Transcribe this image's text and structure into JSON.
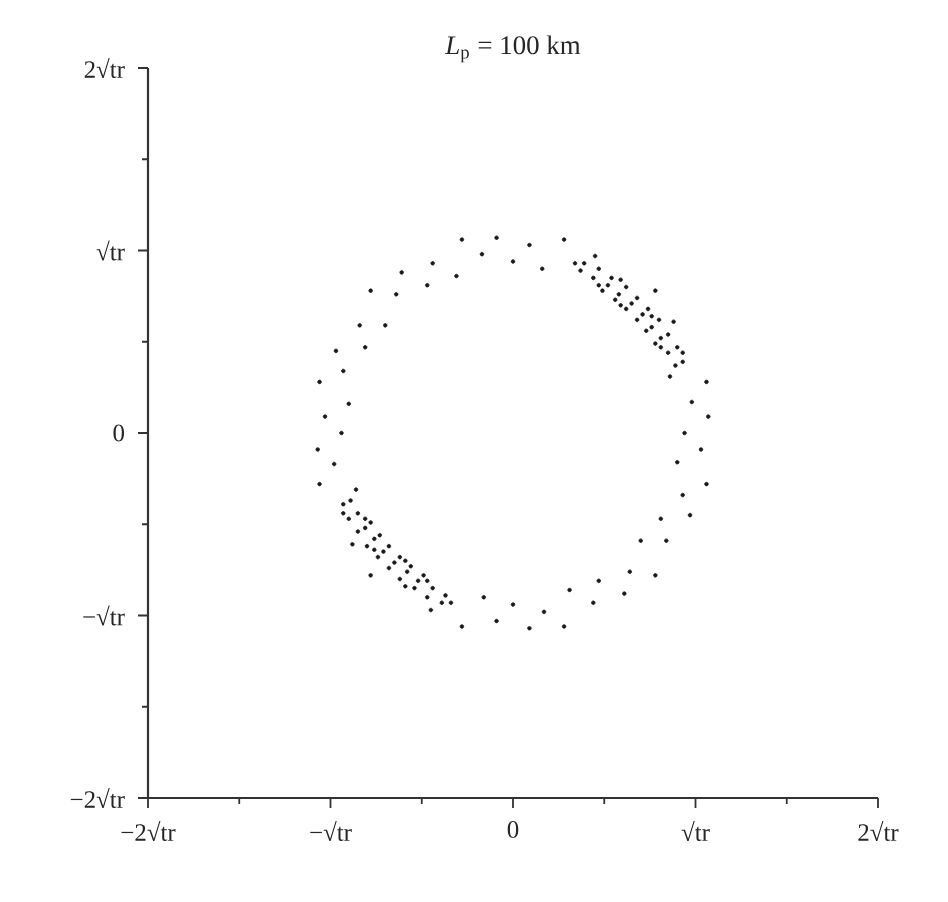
{
  "chart_data": {
    "type": "scatter",
    "title": "*L*$_{p}$ = 100 km",
    "x": [
      0.94,
      1.07,
      0.98,
      1.06,
      0.86,
      0.93,
      0.81,
      0.88,
      0.76,
      0.78,
      0.59,
      0.59,
      0.47,
      0.45,
      0.34,
      0.28,
      0.16,
      0.09,
      0.0,
      -0.09,
      -0.17,
      -0.28,
      -0.31,
      -0.44,
      -0.47,
      -0.61,
      -0.64,
      -0.78,
      -0.7,
      -0.84,
      -0.81,
      -0.97,
      -0.93,
      -1.06,
      -0.9,
      -1.03,
      -0.94,
      -1.07,
      -0.98,
      -1.06,
      -0.86,
      -0.93,
      -0.81,
      -0.88,
      -0.76,
      -0.78,
      -0.59,
      -0.59,
      -0.47,
      -0.45,
      -0.34,
      -0.28,
      -0.16,
      -0.09,
      0.0,
      0.09,
      0.17,
      0.28,
      0.31,
      0.44,
      0.47,
      0.61,
      0.64,
      0.78,
      0.7,
      0.84,
      0.81,
      0.97,
      0.93,
      1.06,
      0.9,
      1.03,
      0.89,
      0.93,
      0.85,
      0.9,
      0.81,
      0.85,
      0.76,
      0.8,
      0.71,
      0.74,
      0.65,
      0.68,
      0.58,
      0.62,
      0.52,
      0.54,
      0.44,
      0.47,
      0.37,
      0.39,
      0.78,
      0.73,
      0.68,
      0.62,
      0.56,
      0.49,
      -0.89,
      -0.93,
      -0.85,
      -0.9,
      -0.81,
      -0.85,
      -0.76,
      -0.8,
      -0.71,
      -0.74,
      -0.65,
      -0.68,
      -0.58,
      -0.62,
      -0.52,
      -0.54,
      -0.44,
      -0.47,
      -0.37,
      -0.39,
      -0.78,
      -0.73,
      -0.68,
      -0.62,
      -0.56,
      -0.49
    ],
    "values": [
      0.0,
      0.09,
      0.17,
      0.28,
      0.31,
      0.44,
      0.47,
      0.61,
      0.64,
      0.78,
      0.7,
      0.84,
      0.81,
      0.97,
      0.93,
      1.06,
      0.9,
      1.03,
      0.94,
      1.07,
      0.98,
      1.06,
      0.86,
      0.93,
      0.81,
      0.88,
      0.76,
      0.78,
      0.59,
      0.59,
      0.47,
      0.45,
      0.34,
      0.28,
      0.16,
      0.09,
      0.0,
      -0.09,
      -0.17,
      -0.28,
      -0.31,
      -0.44,
      -0.47,
      -0.61,
      -0.64,
      -0.78,
      -0.7,
      -0.84,
      -0.81,
      -0.97,
      -0.93,
      -1.06,
      -0.9,
      -1.03,
      -0.94,
      -1.07,
      -0.98,
      -1.06,
      -0.86,
      -0.93,
      -0.81,
      -0.88,
      -0.76,
      -0.78,
      -0.59,
      -0.59,
      -0.47,
      -0.45,
      -0.34,
      -0.28,
      -0.16,
      -0.09,
      0.37,
      0.39,
      0.44,
      0.47,
      0.52,
      0.54,
      0.58,
      0.62,
      0.65,
      0.68,
      0.71,
      0.74,
      0.76,
      0.8,
      0.81,
      0.85,
      0.85,
      0.9,
      0.89,
      0.93,
      0.49,
      0.56,
      0.62,
      0.68,
      0.73,
      0.78,
      -0.37,
      -0.39,
      -0.44,
      -0.47,
      -0.52,
      -0.54,
      -0.58,
      -0.62,
      -0.65,
      -0.68,
      -0.71,
      -0.74,
      -0.76,
      -0.8,
      -0.81,
      -0.85,
      -0.85,
      -0.9,
      -0.89,
      -0.93,
      -0.49,
      -0.56,
      -0.62,
      -0.68,
      -0.73,
      -0.78
    ],
    "color": "#1a1a1a",
    "marker": "circle",
    "xlim": [
      -2,
      2
    ],
    "ylim": [
      -2,
      2
    ],
    "xticks": [
      {
        "value": -2,
        "label": "−2√tr"
      },
      {
        "value": -1.5,
        "label": null
      },
      {
        "value": -1,
        "label": "−√tr"
      },
      {
        "value": -0.5,
        "label": null
      },
      0,
      {
        "value": 0.5,
        "label": null
      },
      {
        "value": 1,
        "label": "√tr"
      },
      {
        "value": 1.5,
        "label": null
      },
      {
        "value": 2,
        "label": "2√tr"
      }
    ],
    "yticks": [
      {
        "value": -2,
        "label": "−2√tr"
      },
      {
        "value": -1.5,
        "label": null
      },
      {
        "value": -1,
        "label": "−√tr"
      },
      {
        "value": -0.5,
        "label": null
      },
      0,
      {
        "value": 0.5,
        "label": null
      },
      {
        "value": 1,
        "label": "√tr"
      },
      {
        "value": 1.5,
        "label": null
      },
      {
        "value": 2,
        "label": "2√tr"
      }
    ]
  }
}
